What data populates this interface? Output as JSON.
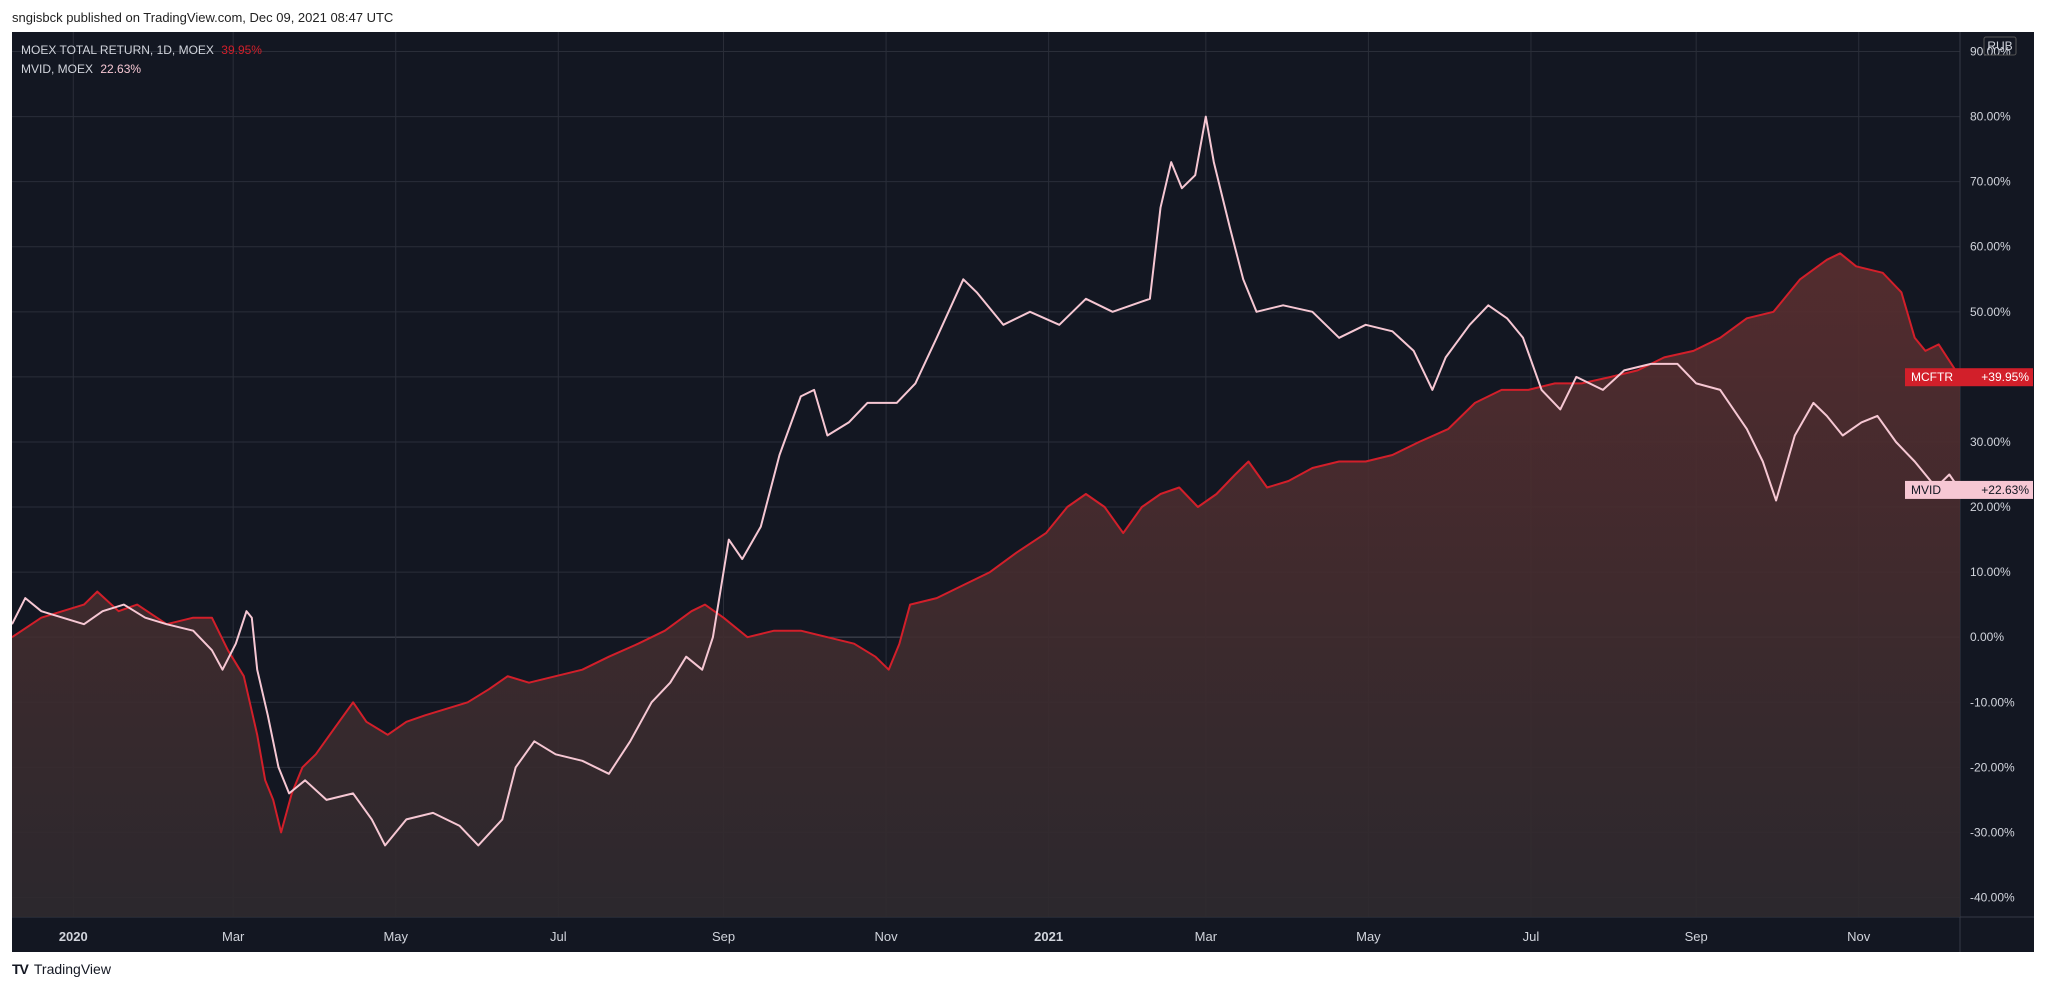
{
  "caption": "sngisbck published on TradingView.com, Dec 09, 2021 08:47 UTC",
  "legend": {
    "series1_name": "MOEX TOTAL RETURN, 1D, MOEX",
    "series1_value": "39.95%",
    "series2_name": "MVID, MOEX",
    "series2_value": "22.63%"
  },
  "currency_label": "RUB",
  "footer": {
    "logo": "TV",
    "brand": "TradingView"
  },
  "colors": {
    "background": "#131722",
    "mcftr": "#d21f2a",
    "mvid": "#f6c7d3",
    "grid": "#2a2e39",
    "axis_text": "#d1d4dc"
  },
  "chart_data": {
    "type": "line",
    "x_start": "2019-12-09",
    "x_end": "2021-12-09",
    "ylim": [
      -43,
      93
    ],
    "yticks": [
      "90.00%",
      "80.00%",
      "70.00%",
      "60.00%",
      "50.00%",
      "40.00%",
      "30.00%",
      "20.00%",
      "10.00%",
      "0.00%",
      "-10.00%",
      "-20.00%",
      "-30.00%",
      "-40.00%"
    ],
    "xticks": [
      {
        "label": "2020",
        "date": "2020-01-01",
        "bold": true
      },
      {
        "label": "Mar",
        "date": "2020-03-01"
      },
      {
        "label": "May",
        "date": "2020-05-01"
      },
      {
        "label": "Jul",
        "date": "2020-07-01"
      },
      {
        "label": "Sep",
        "date": "2020-09-01"
      },
      {
        "label": "Nov",
        "date": "2020-11-01"
      },
      {
        "label": "2021",
        "date": "2021-01-01",
        "bold": true
      },
      {
        "label": "Mar",
        "date": "2021-03-01"
      },
      {
        "label": "May",
        "date": "2021-05-01"
      },
      {
        "label": "Jul",
        "date": "2021-07-01"
      },
      {
        "label": "Sep",
        "date": "2021-09-01"
      },
      {
        "label": "Nov",
        "date": "2021-11-01"
      }
    ],
    "series": [
      {
        "name": "MCFTR",
        "last_label": "+39.95%",
        "filled": true,
        "points": [
          [
            "2019-12-09",
            0
          ],
          [
            "2019-12-20",
            3
          ],
          [
            "2020-01-05",
            5
          ],
          [
            "2020-01-10",
            7
          ],
          [
            "2020-01-18",
            4
          ],
          [
            "2020-01-25",
            5
          ],
          [
            "2020-02-05",
            2
          ],
          [
            "2020-02-15",
            3
          ],
          [
            "2020-02-22",
            3
          ],
          [
            "2020-02-28",
            -2
          ],
          [
            "2020-03-05",
            -6
          ],
          [
            "2020-03-10",
            -15
          ],
          [
            "2020-03-13",
            -22
          ],
          [
            "2020-03-16",
            -25
          ],
          [
            "2020-03-19",
            -30
          ],
          [
            "2020-03-23",
            -24
          ],
          [
            "2020-03-27",
            -20
          ],
          [
            "2020-04-01",
            -18
          ],
          [
            "2020-04-08",
            -14
          ],
          [
            "2020-04-15",
            -10
          ],
          [
            "2020-04-20",
            -13
          ],
          [
            "2020-04-28",
            -15
          ],
          [
            "2020-05-05",
            -13
          ],
          [
            "2020-05-12",
            -12
          ],
          [
            "2020-05-20",
            -11
          ],
          [
            "2020-05-28",
            -10
          ],
          [
            "2020-06-05",
            -8
          ],
          [
            "2020-06-12",
            -6
          ],
          [
            "2020-06-20",
            -7
          ],
          [
            "2020-06-30",
            -6
          ],
          [
            "2020-07-10",
            -5
          ],
          [
            "2020-07-20",
            -3
          ],
          [
            "2020-07-31",
            -1
          ],
          [
            "2020-08-10",
            1
          ],
          [
            "2020-08-20",
            4
          ],
          [
            "2020-08-25",
            5
          ],
          [
            "2020-09-01",
            3
          ],
          [
            "2020-09-10",
            0
          ],
          [
            "2020-09-20",
            1
          ],
          [
            "2020-09-30",
            1
          ],
          [
            "2020-10-10",
            0
          ],
          [
            "2020-10-20",
            -1
          ],
          [
            "2020-10-28",
            -3
          ],
          [
            "2020-11-02",
            -5
          ],
          [
            "2020-11-06",
            -1
          ],
          [
            "2020-11-10",
            5
          ],
          [
            "2020-11-20",
            6
          ],
          [
            "2020-11-30",
            8
          ],
          [
            "2020-12-10",
            10
          ],
          [
            "2020-12-20",
            13
          ],
          [
            "2020-12-31",
            16
          ],
          [
            "2021-01-08",
            20
          ],
          [
            "2021-01-15",
            22
          ],
          [
            "2021-01-22",
            20
          ],
          [
            "2021-01-29",
            16
          ],
          [
            "2021-02-05",
            20
          ],
          [
            "2021-02-12",
            22
          ],
          [
            "2021-02-19",
            23
          ],
          [
            "2021-02-26",
            20
          ],
          [
            "2021-03-05",
            22
          ],
          [
            "2021-03-12",
            25
          ],
          [
            "2021-03-17",
            27
          ],
          [
            "2021-03-24",
            23
          ],
          [
            "2021-04-01",
            24
          ],
          [
            "2021-04-10",
            26
          ],
          [
            "2021-04-20",
            27
          ],
          [
            "2021-04-30",
            27
          ],
          [
            "2021-05-10",
            28
          ],
          [
            "2021-05-20",
            30
          ],
          [
            "2021-05-31",
            32
          ],
          [
            "2021-06-10",
            36
          ],
          [
            "2021-06-20",
            38
          ],
          [
            "2021-06-30",
            38
          ],
          [
            "2021-07-10",
            39
          ],
          [
            "2021-07-20",
            39
          ],
          [
            "2021-07-31",
            40
          ],
          [
            "2021-08-10",
            41
          ],
          [
            "2021-08-20",
            43
          ],
          [
            "2021-08-31",
            44
          ],
          [
            "2021-09-10",
            46
          ],
          [
            "2021-09-20",
            49
          ],
          [
            "2021-09-30",
            50
          ],
          [
            "2021-10-10",
            55
          ],
          [
            "2021-10-20",
            58
          ],
          [
            "2021-10-25",
            59
          ],
          [
            "2021-10-31",
            57
          ],
          [
            "2021-11-10",
            56
          ],
          [
            "2021-11-17",
            53
          ],
          [
            "2021-11-22",
            46
          ],
          [
            "2021-11-26",
            44
          ],
          [
            "2021-12-01",
            45
          ],
          [
            "2021-12-09",
            39.95
          ]
        ]
      },
      {
        "name": "MVID",
        "last_label": "+22.63%",
        "filled": false,
        "points": [
          [
            "2019-12-09",
            2
          ],
          [
            "2019-12-14",
            6
          ],
          [
            "2019-12-20",
            4
          ],
          [
            "2020-01-05",
            2
          ],
          [
            "2020-01-12",
            4
          ],
          [
            "2020-01-20",
            5
          ],
          [
            "2020-01-28",
            3
          ],
          [
            "2020-02-05",
            2
          ],
          [
            "2020-02-15",
            1
          ],
          [
            "2020-02-22",
            -2
          ],
          [
            "2020-02-26",
            -5
          ],
          [
            "2020-03-02",
            -1
          ],
          [
            "2020-03-06",
            4
          ],
          [
            "2020-03-08",
            3
          ],
          [
            "2020-03-10",
            -5
          ],
          [
            "2020-03-14",
            -12
          ],
          [
            "2020-03-18",
            -20
          ],
          [
            "2020-03-22",
            -24
          ],
          [
            "2020-03-28",
            -22
          ],
          [
            "2020-04-05",
            -25
          ],
          [
            "2020-04-15",
            -24
          ],
          [
            "2020-04-22",
            -28
          ],
          [
            "2020-04-27",
            -32
          ],
          [
            "2020-05-05",
            -28
          ],
          [
            "2020-05-15",
            -27
          ],
          [
            "2020-05-25",
            -29
          ],
          [
            "2020-06-01",
            -32
          ],
          [
            "2020-06-10",
            -28
          ],
          [
            "2020-06-15",
            -20
          ],
          [
            "2020-06-22",
            -16
          ],
          [
            "2020-06-30",
            -18
          ],
          [
            "2020-07-10",
            -19
          ],
          [
            "2020-07-20",
            -21
          ],
          [
            "2020-07-28",
            -16
          ],
          [
            "2020-08-05",
            -10
          ],
          [
            "2020-08-12",
            -7
          ],
          [
            "2020-08-18",
            -3
          ],
          [
            "2020-08-24",
            -5
          ],
          [
            "2020-08-28",
            0
          ],
          [
            "2020-09-03",
            15
          ],
          [
            "2020-09-08",
            12
          ],
          [
            "2020-09-15",
            17
          ],
          [
            "2020-09-22",
            28
          ],
          [
            "2020-09-30",
            37
          ],
          [
            "2020-10-05",
            38
          ],
          [
            "2020-10-10",
            31
          ],
          [
            "2020-10-18",
            33
          ],
          [
            "2020-10-25",
            36
          ],
          [
            "2020-11-05",
            36
          ],
          [
            "2020-11-12",
            39
          ],
          [
            "2020-11-20",
            46
          ],
          [
            "2020-11-30",
            55
          ],
          [
            "2020-12-05",
            53
          ],
          [
            "2020-12-15",
            48
          ],
          [
            "2020-12-25",
            50
          ],
          [
            "2021-01-05",
            48
          ],
          [
            "2021-01-15",
            52
          ],
          [
            "2021-01-25",
            50
          ],
          [
            "2021-02-01",
            51
          ],
          [
            "2021-02-08",
            52
          ],
          [
            "2021-02-12",
            66
          ],
          [
            "2021-02-16",
            73
          ],
          [
            "2021-02-20",
            69
          ],
          [
            "2021-02-25",
            71
          ],
          [
            "2021-03-01",
            80
          ],
          [
            "2021-03-04",
            73
          ],
          [
            "2021-03-10",
            63
          ],
          [
            "2021-03-15",
            55
          ],
          [
            "2021-03-20",
            50
          ],
          [
            "2021-03-30",
            51
          ],
          [
            "2021-04-10",
            50
          ],
          [
            "2021-04-20",
            46
          ],
          [
            "2021-04-30",
            48
          ],
          [
            "2021-05-10",
            47
          ],
          [
            "2021-05-18",
            44
          ],
          [
            "2021-05-25",
            38
          ],
          [
            "2021-05-30",
            43
          ],
          [
            "2021-06-08",
            48
          ],
          [
            "2021-06-15",
            51
          ],
          [
            "2021-06-22",
            49
          ],
          [
            "2021-06-28",
            46
          ],
          [
            "2021-07-05",
            38
          ],
          [
            "2021-07-12",
            35
          ],
          [
            "2021-07-18",
            40
          ],
          [
            "2021-07-28",
            38
          ],
          [
            "2021-08-05",
            41
          ],
          [
            "2021-08-15",
            42
          ],
          [
            "2021-08-25",
            42
          ],
          [
            "2021-09-01",
            39
          ],
          [
            "2021-09-10",
            38
          ],
          [
            "2021-09-20",
            32
          ],
          [
            "2021-09-26",
            27
          ],
          [
            "2021-10-01",
            21
          ],
          [
            "2021-10-08",
            31
          ],
          [
            "2021-10-15",
            36
          ],
          [
            "2021-10-20",
            34
          ],
          [
            "2021-10-26",
            31
          ],
          [
            "2021-11-02",
            33
          ],
          [
            "2021-11-08",
            34
          ],
          [
            "2021-11-15",
            30
          ],
          [
            "2021-11-22",
            27
          ],
          [
            "2021-11-30",
            23
          ],
          [
            "2021-12-05",
            25
          ],
          [
            "2021-12-09",
            22.63
          ]
        ]
      }
    ]
  }
}
